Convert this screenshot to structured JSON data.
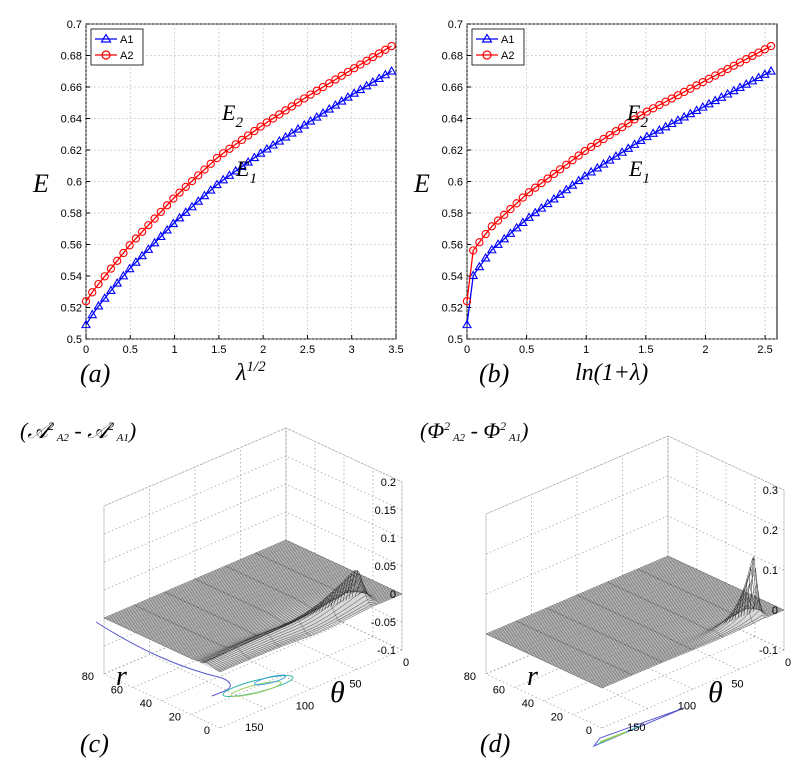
{
  "chart_data": [
    {
      "type": "line",
      "panel_label": "(a)",
      "xlabel": "λ1/2",
      "ylabel": "E",
      "xlim": [
        0,
        3.5
      ],
      "ylim": [
        0.5,
        0.7
      ],
      "xticks": [
        "0",
        "0.5",
        "1",
        "1.5",
        "2",
        "2.5",
        "3",
        "3.5"
      ],
      "yticks": [
        "0.5",
        "0.52",
        "0.54",
        "0.56",
        "0.58",
        "0.6",
        "0.62",
        "0.64",
        "0.66",
        "0.68",
        "0.7"
      ],
      "grid": true,
      "legend": [
        "A1",
        "A2"
      ],
      "legend_position": "top-left",
      "annotations": [
        "E2",
        "E1"
      ],
      "series": [
        {
          "name": "A1",
          "marker": "triangle",
          "color": "#0000ff",
          "x_max": 3.45,
          "points": 50,
          "anchors": {
            "x": [
              0,
              0.1,
              0.3,
              0.5,
              1,
              1.5,
              2,
              2.5,
              3,
              3.45
            ],
            "y": [
              0.509,
              0.518,
              0.532,
              0.545,
              0.574,
              0.599,
              0.619,
              0.637,
              0.655,
              0.67
            ]
          }
        },
        {
          "name": "A2",
          "marker": "circle",
          "color": "#ff0000",
          "x_max": 3.45,
          "points": 50,
          "anchors": {
            "x": [
              0,
              0.1,
              0.3,
              0.5,
              1,
              1.5,
              2,
              2.5,
              3,
              3.45
            ],
            "y": [
              0.524,
              0.532,
              0.546,
              0.56,
              0.59,
              0.616,
              0.636,
              0.654,
              0.671,
              0.686
            ]
          }
        }
      ]
    },
    {
      "type": "line",
      "panel_label": "(b)",
      "xlabel": "ln(1+λ)",
      "ylabel": "E",
      "xlim": [
        0,
        2.6
      ],
      "ylim": [
        0.5,
        0.7
      ],
      "xticks": [
        "0",
        "0.5",
        "1",
        "1.5",
        "2",
        "2.5"
      ],
      "yticks": [
        "0.5",
        "0.52",
        "0.54",
        "0.56",
        "0.58",
        "0.6",
        "0.62",
        "0.64",
        "0.66",
        "0.68",
        "0.7"
      ],
      "grid": true,
      "legend": [
        "A1",
        "A2"
      ],
      "legend_position": "top-left",
      "annotations": [
        "E2",
        "E1"
      ],
      "series": [
        {
          "name": "A1",
          "marker": "triangle",
          "color": "#0000ff",
          "x_max": 2.55,
          "points": 50,
          "anchors": {
            "x": [
              0,
              0.05,
              0.2,
              0.5,
              1,
              1.5,
              2,
              2.55
            ],
            "y": [
              0.509,
              0.54,
              0.556,
              0.576,
              0.604,
              0.628,
              0.648,
              0.67
            ]
          }
        },
        {
          "name": "A2",
          "marker": "circle",
          "color": "#ff0000",
          "x_max": 2.55,
          "points": 50,
          "anchors": {
            "x": [
              0,
              0.05,
              0.2,
              0.5,
              1,
              1.5,
              2,
              2.55
            ],
            "y": [
              0.524,
              0.556,
              0.571,
              0.592,
              0.62,
              0.644,
              0.664,
              0.686
            ]
          }
        }
      ]
    },
    {
      "type": "surface",
      "panel_label": "(c)",
      "title": "(𝒜²A2 - 𝒜²A1)",
      "zlim": [
        -0.1,
        0.2
      ],
      "zticks": [
        "0.2",
        "0.15",
        "0.1",
        "0.05",
        "0",
        "-0.05",
        "-0.1"
      ],
      "r_ticks": [
        "80",
        "60",
        "40",
        "20",
        "0"
      ],
      "theta_ticks": [
        "0",
        "50",
        "100",
        "150"
      ],
      "r_label": "r",
      "theta_label": "θ",
      "peak": 0.06
    },
    {
      "type": "surface",
      "panel_label": "(d)",
      "title": "(Φ²A2 - Φ²A1)",
      "zlim": [
        -0.1,
        0.3
      ],
      "zticks": [
        "0.3",
        "0.2",
        "0.1",
        "0",
        "-0.1"
      ],
      "r_ticks": [
        "80",
        "60",
        "40",
        "20",
        "0"
      ],
      "theta_ticks": [
        "0",
        "50",
        "100",
        "150"
      ],
      "r_label": "r",
      "theta_label": "θ",
      "peak": 0.15
    }
  ]
}
